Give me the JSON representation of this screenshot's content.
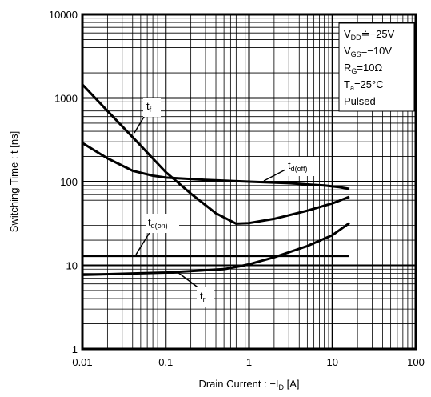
{
  "chart_data": {
    "type": "line",
    "xscale": "log",
    "yscale": "log",
    "xlim": [
      0.01,
      100
    ],
    "ylim": [
      1,
      10000
    ],
    "grid": true,
    "xlabel": {
      "main": "Drain Current : −I",
      "sub": "D",
      "unit": " [A]"
    },
    "ylabel": "Switching Time : t [ns]",
    "xticks": [
      {
        "value": 0.01,
        "label": "0.01"
      },
      {
        "value": 0.1,
        "label": "0.1"
      },
      {
        "value": 1,
        "label": "1"
      },
      {
        "value": 10,
        "label": "10"
      },
      {
        "value": 100,
        "label": "100"
      }
    ],
    "yticks": [
      {
        "value": 1,
        "label": "1"
      },
      {
        "value": 10,
        "label": "10"
      },
      {
        "value": 100,
        "label": "100"
      },
      {
        "value": 1000,
        "label": "1000"
      },
      {
        "value": 10000,
        "label": "10000"
      }
    ],
    "conditions": [
      {
        "main": "V",
        "sub": "DD",
        "rest": "≐−25V"
      },
      {
        "main": "V",
        "sub": "GS",
        "rest": "=−10V"
      },
      {
        "main": "R",
        "sub": "G",
        "rest": "=10Ω"
      },
      {
        "main": "T",
        "sub": "a",
        "rest": "=25°C"
      },
      {
        "main": "Pulsed",
        "sub": "",
        "rest": ""
      }
    ],
    "series": [
      {
        "name": "t_f",
        "label": {
          "main": "t",
          "sub": "f"
        },
        "points": [
          [
            0.01,
            1450
          ],
          [
            0.02,
            700
          ],
          [
            0.05,
            270
          ],
          [
            0.1,
            130
          ],
          [
            0.2,
            72
          ],
          [
            0.4,
            42
          ],
          [
            0.7,
            31.5
          ],
          [
            1,
            32
          ],
          [
            2,
            36
          ],
          [
            5,
            45
          ],
          [
            10,
            55
          ],
          [
            16,
            66
          ]
        ]
      },
      {
        "name": "t_d(off)",
        "label": {
          "main": "t",
          "sub": "d(off)"
        },
        "points": [
          [
            0.01,
            290
          ],
          [
            0.02,
            190
          ],
          [
            0.04,
            135
          ],
          [
            0.07,
            118
          ],
          [
            0.1,
            112
          ],
          [
            0.3,
            105
          ],
          [
            1,
            100
          ],
          [
            3,
            96
          ],
          [
            8,
            90
          ],
          [
            12,
            86
          ],
          [
            16,
            82
          ]
        ]
      },
      {
        "name": "t_d(on)",
        "label": {
          "main": "t",
          "sub": "d(on)"
        },
        "points": [
          [
            0.01,
            13
          ],
          [
            16,
            13
          ]
        ]
      },
      {
        "name": "t_r",
        "label": {
          "main": "t",
          "sub": "r"
        },
        "points": [
          [
            0.01,
            7.7
          ],
          [
            0.1,
            8.2
          ],
          [
            0.5,
            9
          ],
          [
            0.8,
            9.8
          ],
          [
            1,
            10.3
          ],
          [
            2,
            12.5
          ],
          [
            5,
            17
          ],
          [
            10,
            23
          ],
          [
            16,
            32
          ]
        ]
      }
    ]
  }
}
